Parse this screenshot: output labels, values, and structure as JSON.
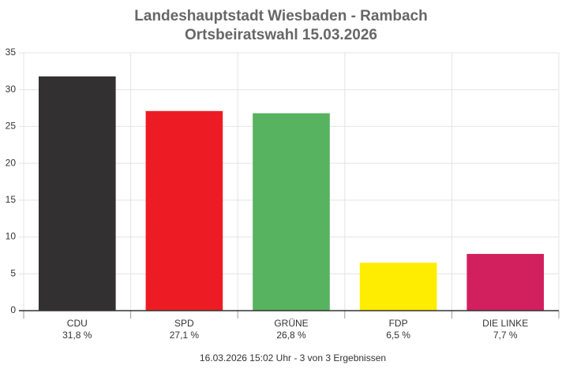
{
  "chart_data": {
    "type": "bar",
    "title": "Landeshauptstadt Wiesbaden - Rambach",
    "subtitle": "Ortsbeiratswahl 15.03.2026",
    "categories": [
      "CDU",
      "SPD",
      "GRÜNE",
      "FDP",
      "DIE LINKE"
    ],
    "values": [
      31.8,
      27.1,
      26.8,
      6.5,
      7.7
    ],
    "value_labels": [
      "31,8 %",
      "27,1 %",
      "26,8 %",
      "6,5 %",
      "7,7 %"
    ],
    "colors": [
      "#323031",
      "#ed1c24",
      "#57b35f",
      "#ffed00",
      "#d21f5d"
    ],
    "ylim": [
      0,
      35
    ],
    "yticks": [
      0,
      5,
      10,
      15,
      20,
      25,
      30,
      35
    ],
    "grid": true,
    "caption": "16.03.2026 15:02 Uhr - 3 von 3 Ergebnissen"
  }
}
